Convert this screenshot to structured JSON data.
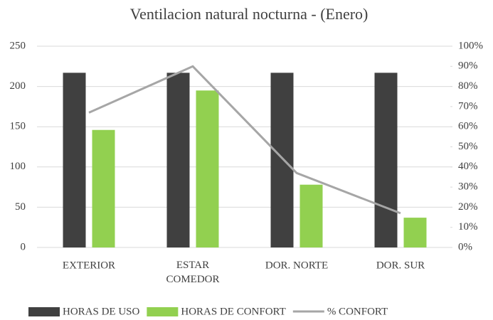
{
  "chart_data": {
    "type": "bar_line",
    "title": "Ventilacion natural nocturna - (Enero)",
    "categories": [
      "EXTERIOR",
      "ESTAR COMEDOR",
      "DOR. NORTE",
      "DOR. SUR"
    ],
    "series": [
      {
        "name": "HORAS DE USO",
        "color": "#404040",
        "type": "bar",
        "values": [
          217,
          217,
          217,
          217
        ]
      },
      {
        "name": "HORAS DE CONFORT",
        "color": "#92d050",
        "type": "bar",
        "values": [
          146,
          195,
          78,
          37
        ]
      },
      {
        "name": "% CONFORT",
        "color": "#a6a6a6",
        "type": "line",
        "axis": "y2",
        "values": [
          67,
          90,
          37,
          17
        ]
      }
    ],
    "ylim": [
      0,
      250
    ],
    "yticks": [
      0,
      50,
      100,
      150,
      200,
      250
    ],
    "y2lim": [
      0,
      100
    ],
    "y2ticks": [
      {
        "value": 0,
        "label": "0%"
      },
      {
        "value": 10,
        "label": "10%"
      },
      {
        "value": 20,
        "label": "20%"
      },
      {
        "value": 30,
        "label": "30%"
      },
      {
        "value": 40,
        "label": "40%"
      },
      {
        "value": 50,
        "label": "50%"
      },
      {
        "value": 60,
        "label": "60%"
      },
      {
        "value": 70,
        "label": "70%"
      },
      {
        "value": 80,
        "label": "80%"
      },
      {
        "value": 90,
        "label": "90%"
      },
      {
        "value": 100,
        "label": "100%"
      }
    ],
    "grid": true,
    "legend": "bottom"
  }
}
